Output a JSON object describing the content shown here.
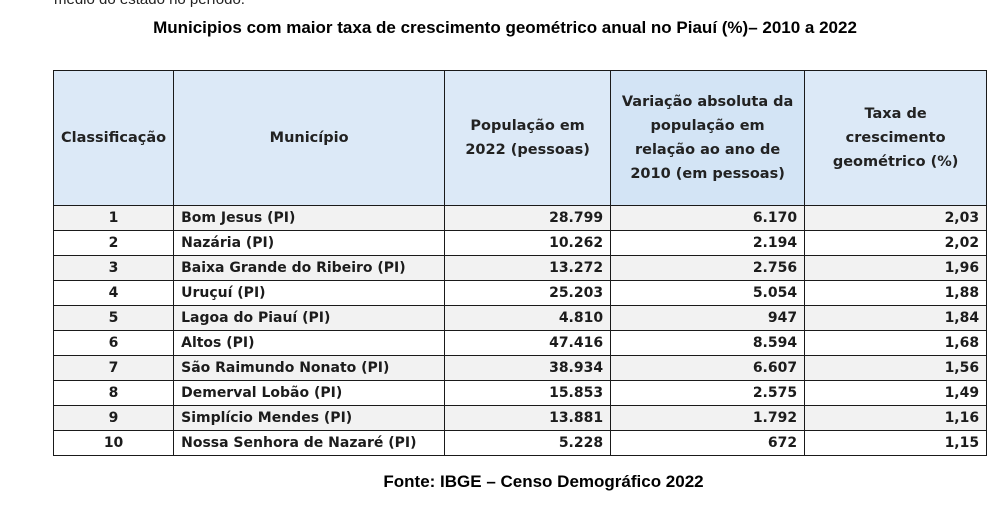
{
  "top_cut_text": "médio do estado no período.",
  "title": "Municipios com maior taxa de crescimento geométrico anual no Piauí (%)– 2010 a 2022",
  "table": {
    "headers": {
      "rank": "Classificação",
      "municipality": "Município",
      "population": "População em 2022 (pessoas)",
      "variation": "Variação absoluta da população em relação ao ano de 2010 (em pessoas)",
      "rate": "Taxa de crescimento geométrico (%)"
    },
    "rows": [
      {
        "rank": "1",
        "municipality": "Bom Jesus (PI)",
        "population": "28.799",
        "variation": "6.170",
        "rate": "2,03"
      },
      {
        "rank": "2",
        "municipality": "Nazária (PI)",
        "population": "10.262",
        "variation": "2.194",
        "rate": "2,02"
      },
      {
        "rank": "3",
        "municipality": "Baixa Grande do Ribeiro (PI)",
        "population": "13.272",
        "variation": "2.756",
        "rate": "1,96"
      },
      {
        "rank": "4",
        "municipality": "Uruçuí (PI)",
        "population": "25.203",
        "variation": "5.054",
        "rate": "1,88"
      },
      {
        "rank": "5",
        "municipality": "Lagoa do Piauí (PI)",
        "population": "4.810",
        "variation": "947",
        "rate": "1,84"
      },
      {
        "rank": "6",
        "municipality": "Altos (PI)",
        "population": "47.416",
        "variation": "8.594",
        "rate": "1,68"
      },
      {
        "rank": "7",
        "municipality": "São Raimundo Nonato (PI)",
        "population": "38.934",
        "variation": "6.607",
        "rate": "1,56"
      },
      {
        "rank": "8",
        "municipality": "Demerval Lobão (PI)",
        "population": "15.853",
        "variation": "2.575",
        "rate": "1,49"
      },
      {
        "rank": "9",
        "municipality": "Simplício Mendes (PI)",
        "population": "13.881",
        "variation": "1.792",
        "rate": "1,16"
      },
      {
        "rank": "10",
        "municipality": "Nossa Senhora de Nazaré (PI)",
        "population": "5.228",
        "variation": "672",
        "rate": "1,15"
      }
    ]
  },
  "source": "Fonte: IBGE – Censo Demográfico 2022"
}
